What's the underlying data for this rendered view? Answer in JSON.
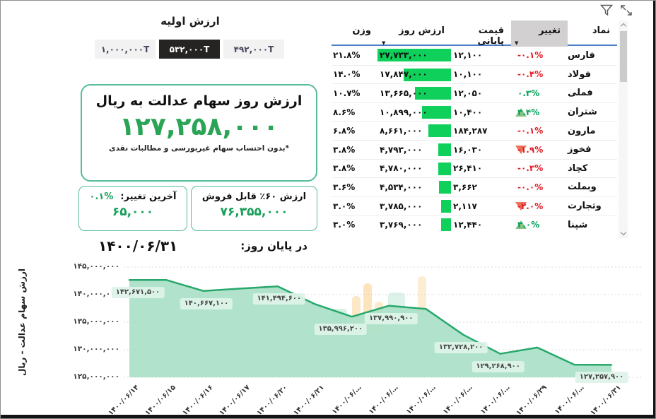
{
  "initial_value": {
    "title": "ارزش اولیه",
    "options": [
      {
        "label": "۱,۰۰۰,۰۰۰T",
        "selected": false
      },
      {
        "label": "۵۳۲,۰۰۰T",
        "selected": true
      },
      {
        "label": "۴۹۲,۰۰۰T",
        "selected": false
      }
    ]
  },
  "value_card": {
    "title": "ارزش روز سهام عدالت به ریال",
    "value": "۱۲۷,۲۵۸,۰۰۰",
    "note": "*بدون احتساب سهام غیربورسی و مطالبات نقدی"
  },
  "last_change_card": {
    "label": "آخرین تغییر:",
    "percent": "۰.۱%",
    "value": "۶۵,۰۰۰"
  },
  "sellable_card": {
    "title": "ارزش ۶۰٪ قابل فروش",
    "value": "۷۶,۳۵۵,۰۰۰"
  },
  "end_of_day": {
    "label": "در پایان روز:",
    "date": "۱۴۰۰/۰۶/۳۱"
  },
  "table": {
    "sort_glyph": "▼",
    "headers": {
      "symbol": "نماد",
      "change": "تغییر",
      "close_price": "قیمت پایانی",
      "day_value": "ارزش روز",
      "weight": "وزن"
    },
    "max_day_value": 27733000,
    "rows": [
      {
        "symbol": "فارس",
        "change": "-۰.۱%",
        "dir": "neg",
        "arrow": "",
        "close": "۱۲,۱۰۰",
        "value": "۲۷,۷۳۳,۰۰۰",
        "value_num": 27733000,
        "weight": "۲۱.۸%"
      },
      {
        "symbol": "فولاد",
        "change": "-۰.۴%",
        "dir": "neg",
        "arrow": "",
        "close": "۱۰,۱۰۰",
        "value": "۱۷,۸۴۷,۰۰۰",
        "value_num": 17847000,
        "weight": "۱۴.۰%"
      },
      {
        "symbol": "فملی",
        "change": "۰.۳%",
        "dir": "pos",
        "arrow": "",
        "close": "۱۲,۰۵۰",
        "value": "۱۳,۶۶۵,۰۰۰",
        "value_num": 13665000,
        "weight": "۱۰.۷%"
      },
      {
        "symbol": "شتران",
        "change": "۳.۴%",
        "dir": "pos",
        "arrow": "up",
        "close": "۱۰,۴۰۰",
        "value": "۱۰,۸۹۹,۰۰۰",
        "value_num": 10899000,
        "weight": "۸.۶%"
      },
      {
        "symbol": "مارون",
        "change": "-۰.۱%",
        "dir": "neg",
        "arrow": "",
        "close": "۱۸۴,۲۸۷",
        "value": "۸,۶۶۱,۰۰۰",
        "value_num": 8661000,
        "weight": "۶.۸%"
      },
      {
        "symbol": "فخوز",
        "change": "-۱.۹%",
        "dir": "neg",
        "arrow": "down",
        "close": "۱۶,۰۳۰",
        "value": "۴,۷۹۳,۰۰۰",
        "value_num": 4793000,
        "weight": "۳.۸%"
      },
      {
        "symbol": "کچاد",
        "change": "-۰.۳%",
        "dir": "neg",
        "arrow": "",
        "close": "۲۶,۴۱۰",
        "value": "۴,۷۸۰,۰۰۰",
        "value_num": 4780000,
        "weight": "۳.۸%"
      },
      {
        "symbol": "وبملت",
        "change": "-۰.۰%",
        "dir": "neg",
        "arrow": "",
        "close": "۳,۶۶۲",
        "value": "۴,۵۳۴,۰۰۰",
        "value_num": 4534000,
        "weight": "۳.۶%"
      },
      {
        "symbol": "وتجارت",
        "change": "-۲.۰%",
        "dir": "neg",
        "arrow": "down",
        "close": "۲,۱۱۷",
        "value": "۳,۷۸۵,۰۰۰",
        "value_num": 3785000,
        "weight": "۳.۰%"
      },
      {
        "symbol": "شپنا",
        "change": "۳.۰%",
        "dir": "pos",
        "arrow": "up",
        "close": "۱۲,۴۴۰",
        "value": "۳,۷۶۹,۰۰۰",
        "value_num": 3769000,
        "weight": "۳.۰%"
      }
    ]
  },
  "chart_data": {
    "type": "area",
    "title": "",
    "xlabel": "",
    "ylabel": "ارزش سهام عدالت - ریال",
    "ylim": [
      125000000,
      145000000
    ],
    "grid": "dotted-horizontal",
    "yticks": [
      {
        "label": "۱۴۵,۰۰۰,۰۰۰",
        "value": 145000000
      },
      {
        "label": "۱۴۰,۰۰۰,۰۰۰",
        "value": 140000000
      },
      {
        "label": "۱۳۵,۰۰۰,۰۰۰",
        "value": 135000000
      },
      {
        "label": "۱۳۰,۰۰۰,۰۰۰",
        "value": 130000000
      },
      {
        "label": "۱۲۵,۰۰۰,۰۰۰",
        "value": 125000000
      }
    ],
    "points": [
      {
        "x": "۱۴۰۰/۰۶/۱۴",
        "value": 142671500,
        "label": "۱۴۲,۶۷۱,۵۰۰",
        "dx": 12
      },
      {
        "x": "۱۴۰۰/۰۶/۱۵",
        "value": 142650000
      },
      {
        "x": "۱۴۰۰/۰۶/۱۶",
        "value": 140667100,
        "label": "۱۴۰,۶۶۷,۱۰۰",
        "dx": 4
      },
      {
        "x": "۱۴۰۰/۰۶/۱۷",
        "value": 141100000
      },
      {
        "x": "۱۴۰۰/۰۶/۲۰",
        "value": 141494600,
        "label": "۱۴۱,۴۹۴,۶۰۰",
        "dx": 2
      },
      {
        "x": "۱۴۰۰/۰۶/۲۱",
        "value": 138300000
      },
      {
        "x": "۱۴۰۰/۰۶/…",
        "value": 135996200,
        "label": "۱۳۵,۹۹۶,۲۰۰",
        "dx": -16
      },
      {
        "x": "۱۴۰۰/۰۶/…",
        "value": 137990900,
        "label": "۱۳۷,۹۹۰,۹۰۰",
        "dx": 3
      },
      {
        "x": "۱۴۰۰/۰۶/…",
        "value": 137400000
      },
      {
        "x": "۱۴۰۰/۰۶/…",
        "value": 132728200,
        "label": "۱۳۲,۷۲۸,۲۰۰",
        "dx": -3
      },
      {
        "x": "۱۴۰۰/۰۶/…",
        "value": 129268900,
        "label": "۱۲۹,۲۶۸,۹۰۰",
        "dx": -3
      },
      {
        "x": "۱۴۰۰/۰۶/۲۹",
        "value": 130400000
      },
      {
        "x": "۱۴۰۰/۰۶/…",
        "value": 127300000
      },
      {
        "x": "۱۴۰۰/۰۶/۳۱",
        "value": 127257900,
        "label": "۱۲۷,۲۵۷,۹۰۰",
        "dx": -14
      }
    ],
    "legend": "none"
  },
  "colors": {
    "accent_green": "#2aa455",
    "line_green": "#28a86c",
    "area_fill": "#a8e0c6",
    "bar_green": "#10d05c",
    "negative_red": "#e01b24",
    "positive_green": "#00a05a",
    "up_triangle": "#85c285",
    "down_triangle": "#ee7158",
    "box_border": "#57bd97",
    "header_highlight": "#d2d0d0",
    "header_underline": "#4a7dc4",
    "selected_segment_bg": "#252423"
  }
}
